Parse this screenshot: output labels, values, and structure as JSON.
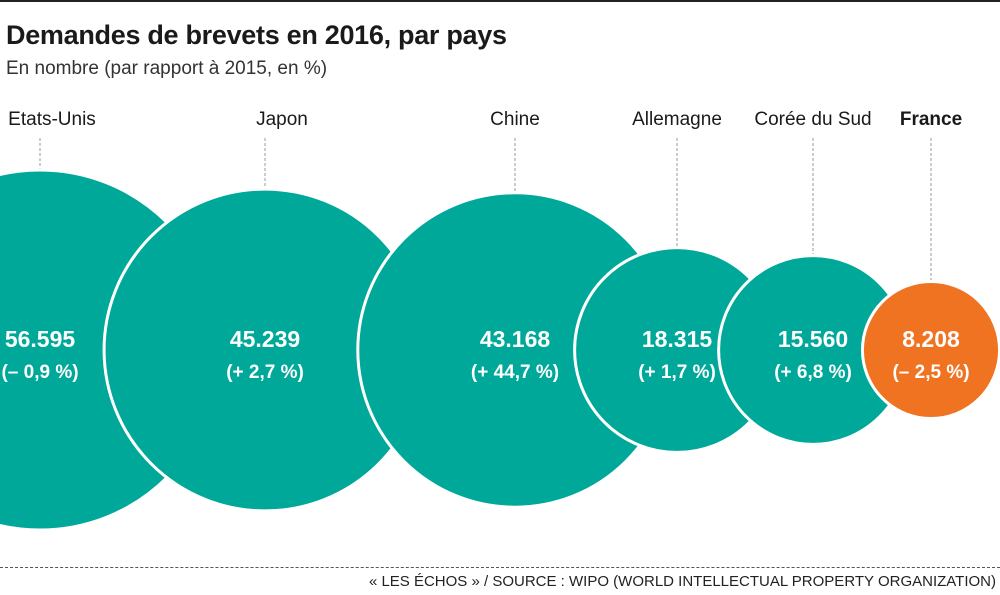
{
  "header": {
    "title": "Demandes de brevets en 2016, par pays",
    "subtitle": "En nombre (par rapport à 2015, en %)"
  },
  "footer": {
    "source": "« LES ÉCHOS » / SOURCE : WIPO (WORLD INTELLECTUAL PROPERTY ORGANIZATION)"
  },
  "colors": {
    "series": "#00a89a",
    "highlight": "#f07322",
    "circle_label": "#ffffff",
    "leader": "#9a9a9a"
  },
  "chart_data": {
    "type": "bubble",
    "title": "Demandes de brevets en 2016, par pays",
    "subtitle": "En nombre (par rapport à 2015, en %)",
    "categories": [
      "Etats-Unis",
      "Japon",
      "Chine",
      "Allemagne",
      "Corée du Sud",
      "France"
    ],
    "values": [
      56595,
      45239,
      43168,
      18315,
      15560,
      8208
    ],
    "value_labels": [
      "56.595",
      "45.239",
      "43.168",
      "18.315",
      "15.560",
      "8.208"
    ],
    "change_pct": [
      -0.9,
      2.7,
      44.7,
      1.7,
      6.8,
      -2.5
    ],
    "change_labels": [
      "(– 0,9 %)",
      "(+ 2,7 %)",
      "(+ 44,7 %)",
      "(+ 1,7 %)",
      "(+ 6,8 %)",
      "(– 2,5 %)"
    ],
    "highlighted": "France"
  }
}
